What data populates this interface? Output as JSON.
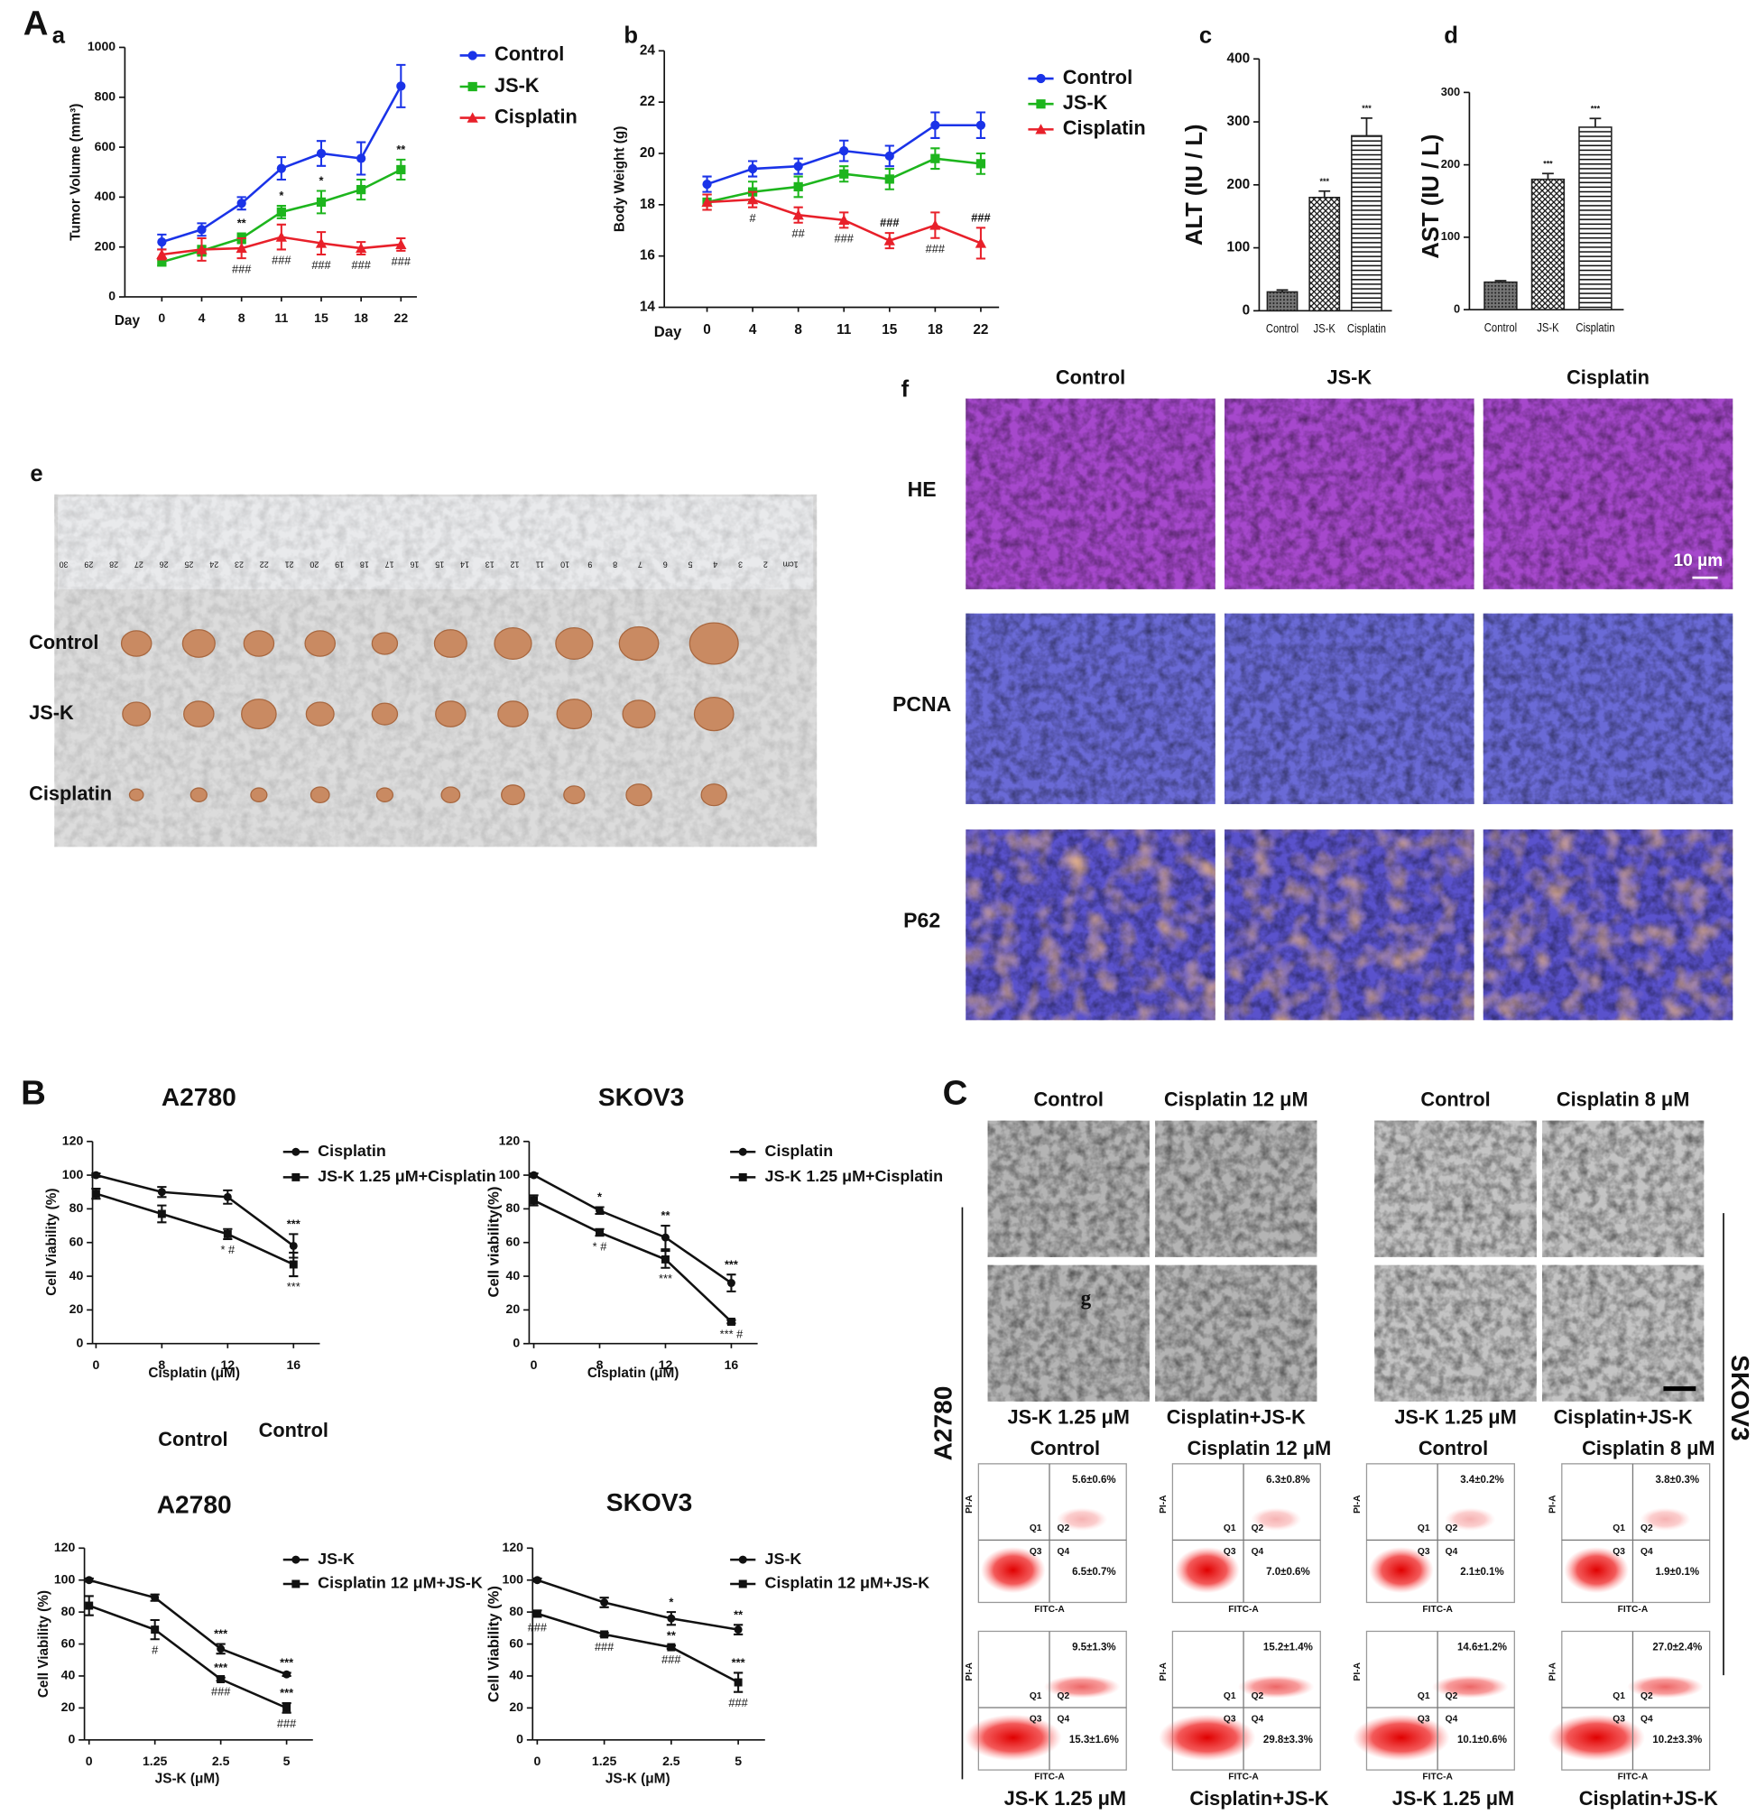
{
  "panel_labels": [
    "A",
    "a",
    "b",
    "c",
    "d",
    "e",
    "f",
    "B",
    "C",
    "g"
  ],
  "chart_data": [
    {
      "type": "line",
      "y_label": "Tumor Volume (mm³)",
      "x_label": "Day",
      "categories": [
        "0",
        "4",
        "8",
        "11",
        "15",
        "18",
        "22"
      ],
      "ylim": [
        0,
        1000
      ],
      "yticks": [
        0,
        200,
        400,
        600,
        800,
        1000
      ],
      "series": [
        {
          "name": "Control",
          "color": "#1a33e8",
          "marker": "circle",
          "values": [
            220,
            270,
            375,
            515,
            575,
            555,
            845
          ],
          "errors": [
            30,
            25,
            25,
            45,
            50,
            65,
            85
          ]
        },
        {
          "name": "JS-K",
          "color": "#1db51d",
          "marker": "square",
          "values": [
            140,
            185,
            235,
            340,
            380,
            430,
            510
          ],
          "errors": [
            15,
            20,
            20,
            25,
            45,
            40,
            40
          ],
          "annotations": [
            null,
            null,
            "**",
            "*",
            "*",
            null,
            "**"
          ]
        },
        {
          "name": "Cisplatin",
          "color": "#e8202a",
          "marker": "triangle",
          "values": [
            170,
            190,
            195,
            240,
            215,
            195,
            210
          ],
          "errors": [
            20,
            45,
            40,
            50,
            45,
            25,
            25
          ],
          "below_annotations": [
            null,
            null,
            "###",
            "###",
            "###",
            "###",
            "###"
          ]
        }
      ]
    },
    {
      "type": "line",
      "y_label": "Body Weight (g)",
      "x_label": "Day",
      "categories": [
        "0",
        "4",
        "8",
        "11",
        "15",
        "18",
        "22"
      ],
      "ylim": [
        14,
        24
      ],
      "yticks": [
        14,
        16,
        18,
        20,
        22,
        24
      ],
      "series": [
        {
          "name": "Control",
          "color": "#1a33e8",
          "marker": "circle",
          "values": [
            18.8,
            19.4,
            19.5,
            20.1,
            19.9,
            21.1,
            21.1
          ],
          "errors": [
            0.3,
            0.3,
            0.3,
            0.4,
            0.4,
            0.5,
            0.5
          ]
        },
        {
          "name": "JS-K",
          "color": "#1db51d",
          "marker": "square",
          "values": [
            18.1,
            18.5,
            18.7,
            19.2,
            19.0,
            19.8,
            19.6
          ],
          "errors": [
            0.3,
            0.4,
            0.4,
            0.3,
            0.4,
            0.4,
            0.4
          ]
        },
        {
          "name": "Cisplatin",
          "color": "#e8202a",
          "marker": "triangle",
          "values": [
            18.1,
            18.2,
            17.6,
            17.4,
            16.6,
            17.2,
            16.5
          ],
          "errors": [
            0.3,
            0.3,
            0.3,
            0.3,
            0.3,
            0.5,
            0.6
          ],
          "annotations": [
            null,
            null,
            null,
            null,
            "###",
            null,
            "###"
          ],
          "below_annotations": [
            null,
            "#",
            "##",
            "###",
            null,
            "###",
            null
          ]
        }
      ]
    },
    {
      "type": "bar",
      "y_label": "ALT (IU / L)",
      "categories": [
        "Control",
        "JS-K",
        "Cisplatin"
      ],
      "values": [
        30,
        180,
        278
      ],
      "errors": [
        3,
        10,
        28
      ],
      "annotations": [
        null,
        "***",
        "***"
      ],
      "color": "#222222",
      "ylim": [
        0,
        400
      ],
      "yticks": [
        0,
        100,
        200,
        300,
        400
      ]
    },
    {
      "type": "bar",
      "y_label": "AST (IU / L)",
      "categories": [
        "Control",
        "JS-K",
        "Cisplatin"
      ],
      "values": [
        38,
        180,
        252
      ],
      "errors": [
        2,
        8,
        12
      ],
      "annotations": [
        null,
        "***",
        "***"
      ],
      "color": "#222222",
      "ylim": [
        0,
        300
      ],
      "yticks": [
        0,
        100,
        200,
        300
      ]
    },
    {
      "type": "line",
      "title": "A2780",
      "y_label": "Cell Viability (%)",
      "x_label": "Cisplatin (μM)",
      "categories": [
        "0",
        "8",
        "12",
        "16"
      ],
      "ylim": [
        0,
        120
      ],
      "yticks": [
        0,
        20,
        40,
        60,
        80,
        100,
        120
      ],
      "series": [
        {
          "name": "Cisplatin",
          "color": "#111111",
          "marker": "circle",
          "values": [
            100,
            90,
            87,
            58
          ],
          "errors": [
            1,
            3,
            4,
            7
          ],
          "annotations": [
            null,
            null,
            null,
            "***"
          ]
        },
        {
          "name": "JS-K 1.25 μM+Cisplatin",
          "color": "#111111",
          "marker": "square",
          "values": [
            89,
            77,
            65,
            47
          ],
          "errors": [
            3,
            5,
            3,
            7
          ],
          "below_annotations": [
            null,
            null,
            "* #",
            "***"
          ]
        }
      ]
    },
    {
      "type": "line",
      "title": "SKOV3",
      "y_label": "Cell viability(%)",
      "x_label": "Cisplatin (μM)",
      "categories": [
        "0",
        "8",
        "12",
        "16"
      ],
      "ylim": [
        0,
        120
      ],
      "yticks": [
        0,
        20,
        40,
        60,
        80,
        100,
        120
      ],
      "series": [
        {
          "name": "Cisplatin",
          "color": "#111111",
          "marker": "circle",
          "values": [
            100,
            79,
            63,
            36
          ],
          "errors": [
            1,
            2,
            7,
            5
          ],
          "annotations": [
            null,
            "*",
            "**",
            "***"
          ]
        },
        {
          "name": "JS-K 1.25 μM+Cisplatin",
          "color": "#111111",
          "marker": "square",
          "values": [
            85,
            66,
            50,
            13
          ],
          "errors": [
            3,
            2,
            5,
            1
          ],
          "below_annotations": [
            null,
            "* #",
            "***",
            "*** #"
          ]
        }
      ]
    },
    {
      "type": "line",
      "title": "A2780",
      "y_label": "Cell Viability (%)",
      "x_label": "JS-K (μM)",
      "categories": [
        "0",
        "1.25",
        "2.5",
        "5"
      ],
      "ylim": [
        0,
        120
      ],
      "yticks": [
        0,
        20,
        40,
        60,
        80,
        100,
        120
      ],
      "series": [
        {
          "name": "JS-K",
          "color": "#111111",
          "marker": "circle",
          "values": [
            100,
            89,
            57,
            41
          ],
          "errors": [
            1,
            2,
            3,
            1
          ],
          "annotations": [
            null,
            null,
            "***",
            "***"
          ]
        },
        {
          "name": "Cisplatin 12 μM+JS-K",
          "color": "#111111",
          "marker": "square",
          "values": [
            84,
            69,
            38,
            20
          ],
          "errors": [
            6,
            6,
            1,
            3
          ],
          "annotations": [
            null,
            null,
            "***",
            "***"
          ],
          "below_annotations": [
            null,
            "#",
            "###",
            "###"
          ]
        }
      ]
    },
    {
      "type": "line",
      "title": "SKOV3",
      "y_label": "Cell Viability (%)",
      "x_label": "JS-K (μM)",
      "categories": [
        "0",
        "1.25",
        "2.5",
        "5"
      ],
      "ylim": [
        0,
        120
      ],
      "yticks": [
        0,
        20,
        40,
        60,
        80,
        100,
        120
      ],
      "series": [
        {
          "name": "JS-K",
          "color": "#111111",
          "marker": "circle",
          "values": [
            100,
            86,
            76,
            69
          ],
          "errors": [
            1,
            3,
            4,
            3
          ],
          "annotations": [
            null,
            null,
            "*",
            "**"
          ]
        },
        {
          "name": "Cisplatin 12 μM+JS-K",
          "color": "#111111",
          "marker": "square",
          "values": [
            79,
            66,
            58,
            36
          ],
          "errors": [
            2,
            1,
            1,
            6
          ],
          "annotations": [
            null,
            null,
            "**",
            "***"
          ],
          "below_annotations": [
            "###",
            "###",
            "###",
            "###"
          ]
        }
      ]
    }
  ],
  "tumor_photo": {
    "rows": [
      "Control",
      "JS-K",
      "Cisplatin"
    ],
    "ruler": [
      "30",
      "29",
      "28",
      "27",
      "26",
      "25",
      "24",
      "23",
      "22",
      "21",
      "20",
      "19",
      "18",
      "17",
      "16",
      "15",
      "14",
      "13",
      "12",
      "11",
      "10",
      "9",
      "8",
      "7",
      "6",
      "5",
      "4",
      "3",
      "2",
      "1cm"
    ]
  },
  "histology": {
    "columns": [
      "Control",
      "JS-K",
      "Cisplatin"
    ],
    "rows": [
      "HE",
      "PCNA",
      "P62"
    ],
    "scale_bar": "10 µm"
  },
  "stray_labels": [
    "Control",
    "Control"
  ],
  "micrographs": {
    "top_labels": [
      "Control",
      "Cisplatin 12 μM",
      "Control",
      "Cisplatin 8 μM"
    ],
    "bottom_labels": [
      "JS-K 1.25 μM",
      "Cisplatin+JS-K",
      "JS-K 1.25 μM",
      "Cisplatin+JS-K"
    ],
    "cell_lines": [
      "A2780",
      "SKOV3"
    ]
  },
  "flow": {
    "top_titles": [
      "Control",
      "Cisplatin 12 μM",
      "Control",
      "Cisplatin 8 μM"
    ],
    "bottom_labels": [
      "JS-K 1.25 μM",
      "Cisplatin+JS-K",
      "JS-K 1.25 μM",
      "Cisplatin+JS-K"
    ],
    "quadrants": [
      "Q1",
      "Q2",
      "Q3",
      "Q4"
    ],
    "x_label": "FITC-A",
    "y_label": "PI-A",
    "plots": [
      [
        {
          "q2": "5.6±0.6%",
          "q4": "6.5±0.7%"
        },
        {
          "q2": "6.3±0.8%",
          "q4": "7.0±0.6%"
        },
        {
          "q2": "3.4±0.2%",
          "q4": "2.1±0.1%"
        },
        {
          "q2": "3.8±0.3%",
          "q4": "1.9±0.1%"
        }
      ],
      [
        {
          "q2": "9.5±1.3%",
          "q4": "15.3±1.6%"
        },
        {
          "q2": "15.2±1.4%",
          "q4": "29.8±3.3%"
        },
        {
          "q2": "14.6±1.2%",
          "q4": "10.1±0.6%"
        },
        {
          "q2": "27.0±2.4%",
          "q4": "10.2±3.3%"
        }
      ]
    ]
  }
}
